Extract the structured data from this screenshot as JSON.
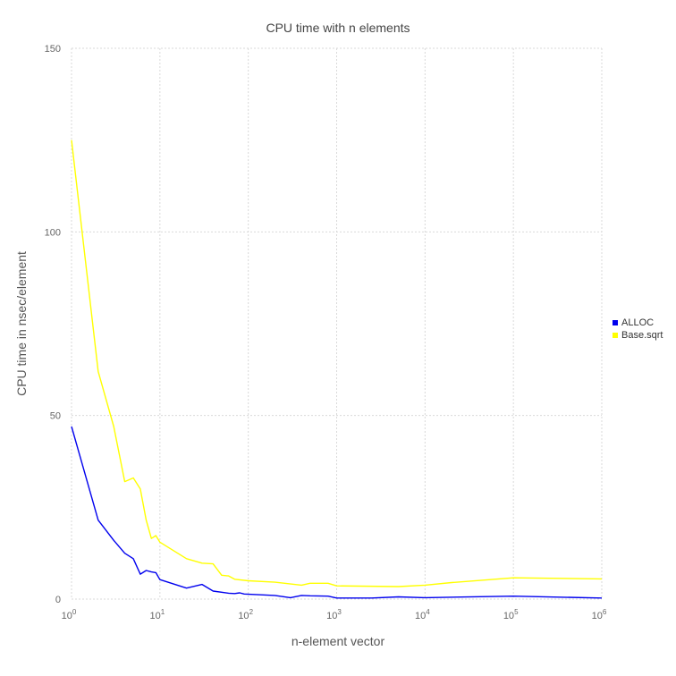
{
  "chart_data": {
    "type": "line",
    "title": "CPU time with n elements",
    "xlabel": "n-element vector",
    "ylabel": "CPU time in nsec/element",
    "xscale": "log",
    "xlim": [
      1,
      1000000
    ],
    "ylim": [
      0,
      150
    ],
    "grid": true,
    "legend_position": "right",
    "x_ticks": [
      {
        "base": "10",
        "exp": "0",
        "value": 1
      },
      {
        "base": "10",
        "exp": "1",
        "value": 10
      },
      {
        "base": "10",
        "exp": "2",
        "value": 100
      },
      {
        "base": "10",
        "exp": "3",
        "value": 1000
      },
      {
        "base": "10",
        "exp": "4",
        "value": 10000
      },
      {
        "base": "10",
        "exp": "5",
        "value": 100000
      },
      {
        "base": "10",
        "exp": "6",
        "value": 1000000
      }
    ],
    "y_ticks": [
      "0",
      "50",
      "100",
      "150"
    ],
    "series": [
      {
        "name": "ALLOC",
        "color": "#0000ee",
        "points": [
          [
            1,
            47
          ],
          [
            2,
            21.5
          ],
          [
            3,
            16
          ],
          [
            4,
            12.5
          ],
          [
            5,
            11
          ],
          [
            6,
            6.8
          ],
          [
            7,
            7.8
          ],
          [
            8,
            7.4
          ],
          [
            9,
            7.2
          ],
          [
            10,
            5.3
          ],
          [
            20,
            3
          ],
          [
            30,
            4
          ],
          [
            40,
            2.2
          ],
          [
            60,
            1.6
          ],
          [
            70,
            1.5
          ],
          [
            80,
            1.7
          ],
          [
            90,
            1.4
          ],
          [
            200,
            1
          ],
          [
            300,
            0.4
          ],
          [
            400,
            1
          ],
          [
            500,
            0.9
          ],
          [
            800,
            0.8
          ],
          [
            1000,
            0.3
          ],
          [
            2500,
            0.3
          ],
          [
            5000,
            0.6
          ],
          [
            10000,
            0.4
          ],
          [
            100000,
            0.8
          ],
          [
            1000000,
            0.3
          ]
        ]
      },
      {
        "name": "Base.sqrt",
        "color": "#ffff00",
        "points": [
          [
            1,
            125
          ],
          [
            2,
            62
          ],
          [
            3,
            47
          ],
          [
            4,
            32
          ],
          [
            5,
            33
          ],
          [
            6,
            30
          ],
          [
            7,
            21.5
          ],
          [
            8,
            16.5
          ],
          [
            9,
            17.3
          ],
          [
            10,
            15.5
          ],
          [
            20,
            11
          ],
          [
            30,
            9.8
          ],
          [
            40,
            9.6
          ],
          [
            50,
            6.5
          ],
          [
            60,
            6.3
          ],
          [
            70,
            5.4
          ],
          [
            100,
            5
          ],
          [
            200,
            4.6
          ],
          [
            400,
            3.8
          ],
          [
            500,
            4.3
          ],
          [
            800,
            4.3
          ],
          [
            1000,
            3.6
          ],
          [
            5000,
            3.4
          ],
          [
            10000,
            3.8
          ],
          [
            20000,
            4.5
          ],
          [
            100000,
            5.8
          ],
          [
            1000000,
            5.5
          ]
        ]
      }
    ]
  }
}
